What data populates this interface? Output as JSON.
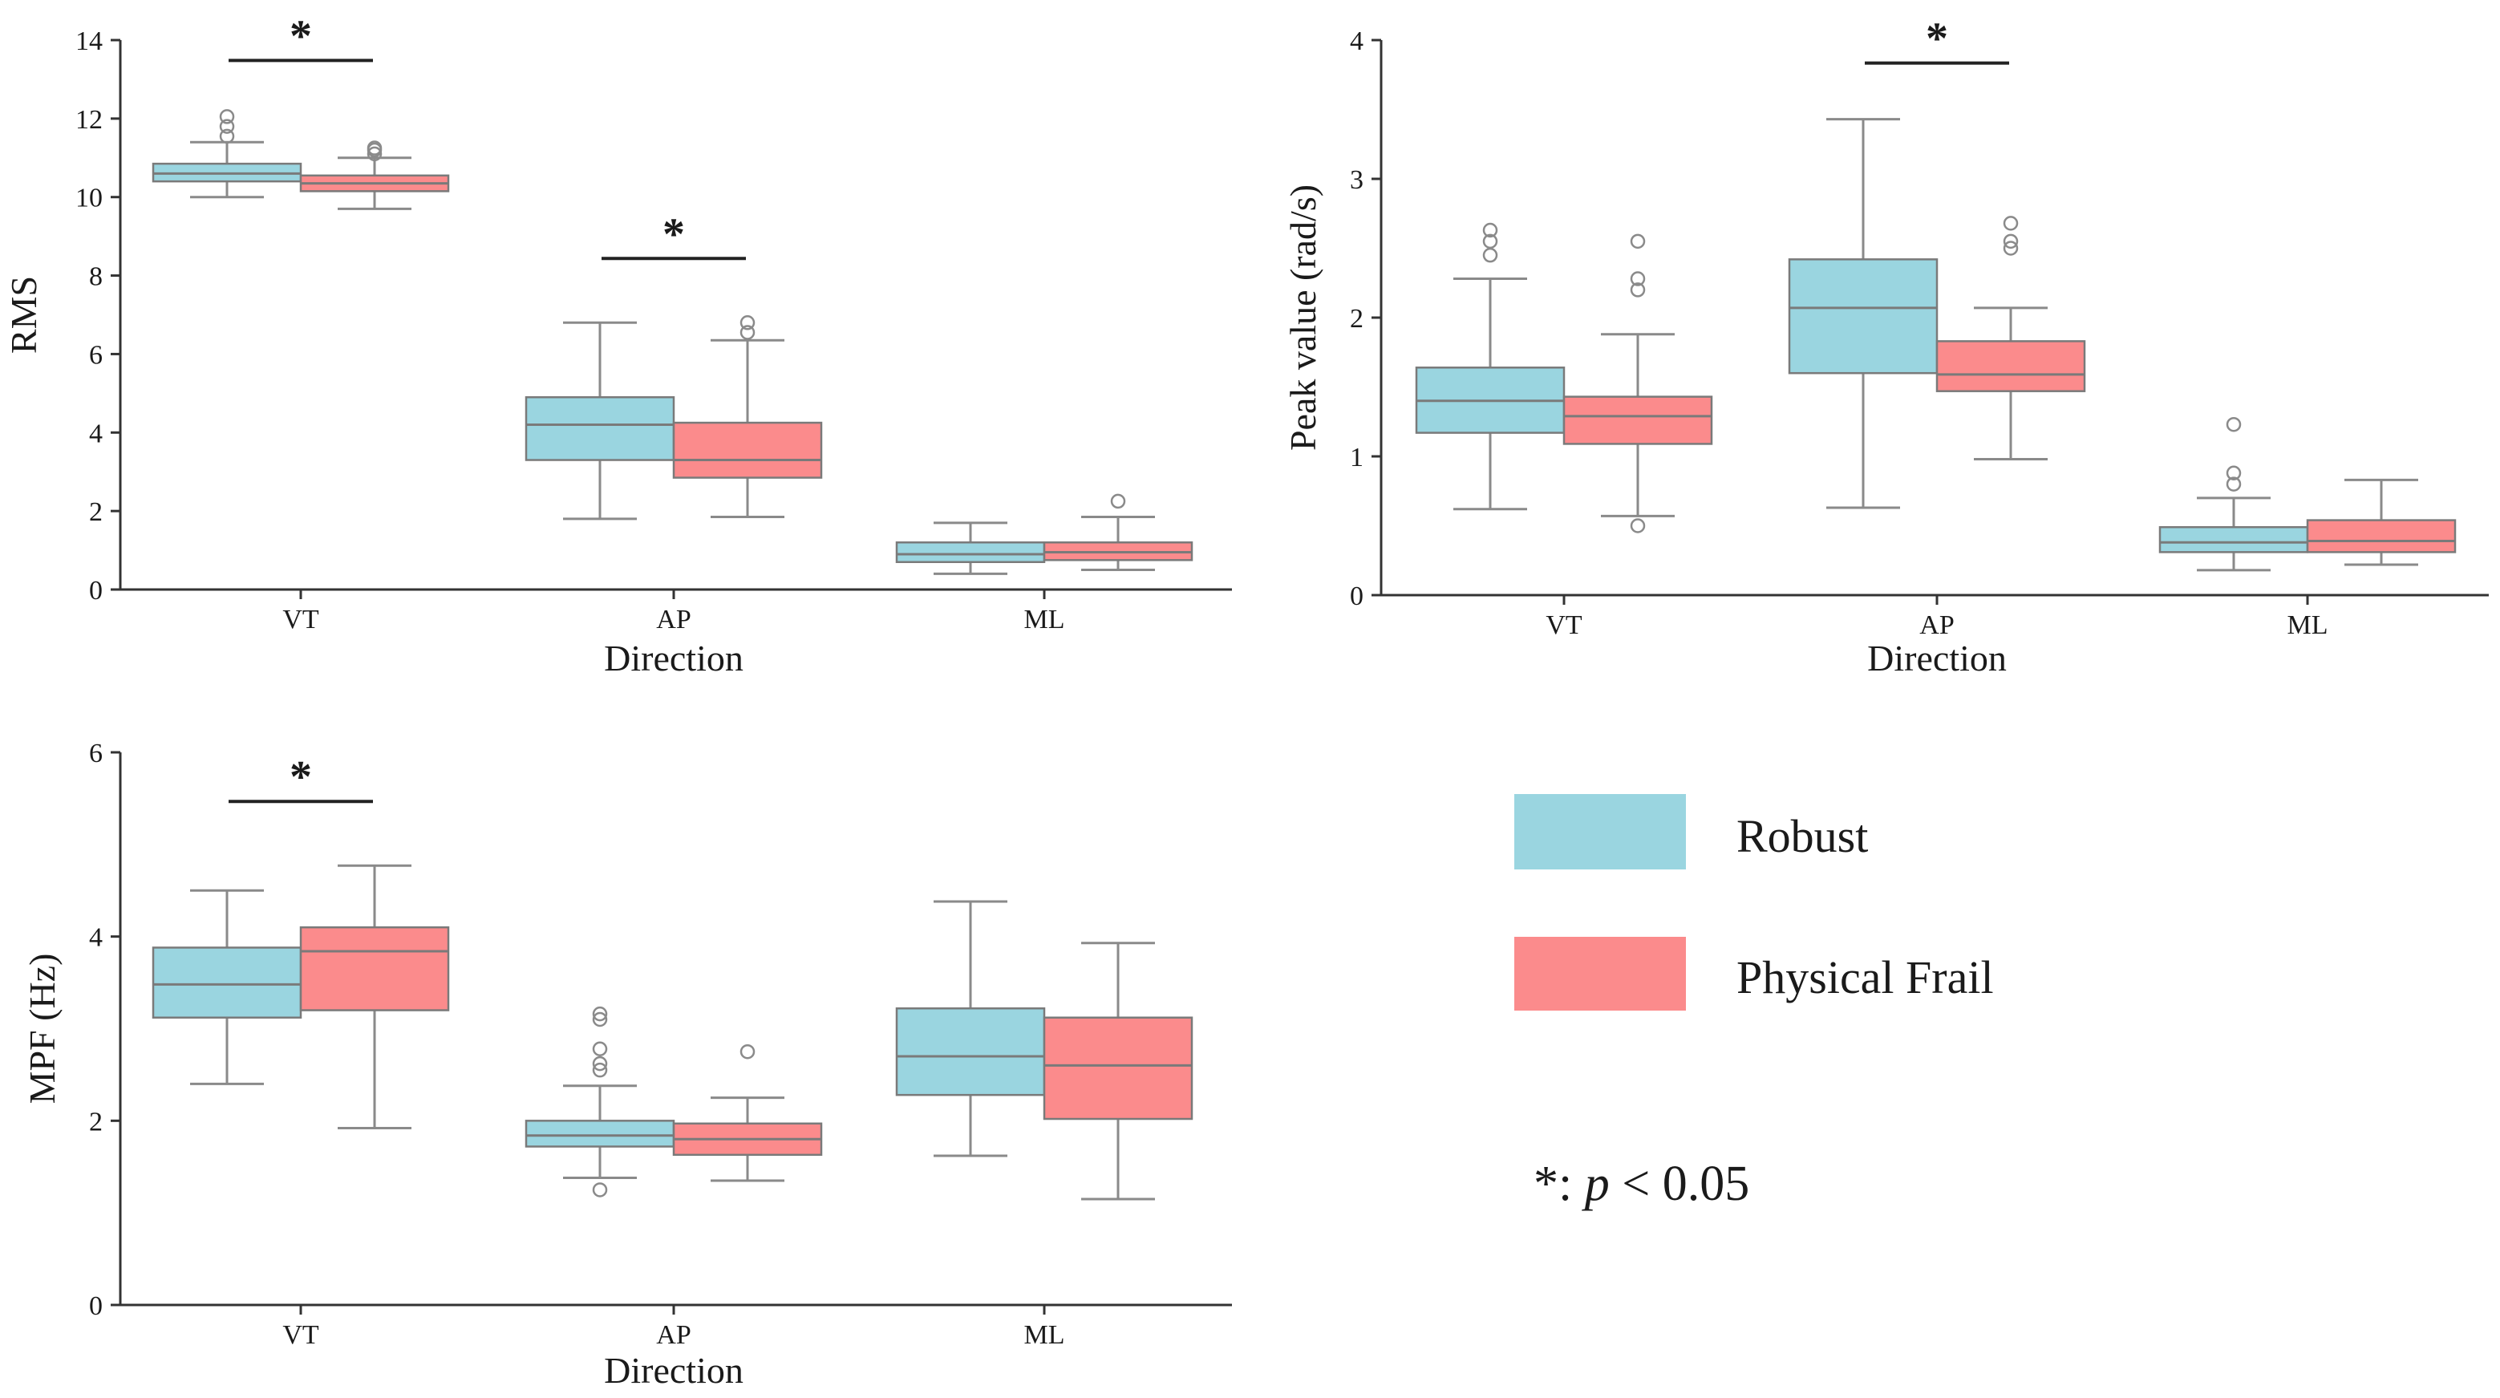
{
  "chart_data": [
    {
      "type": "box",
      "id": "rms",
      "ylabel": "RMS",
      "xlabel": "Direction",
      "ylim": [
        0,
        14
      ],
      "yticks": [
        0,
        2,
        4,
        6,
        8,
        10,
        12,
        14
      ],
      "categories": [
        "VT",
        "AP",
        "ML"
      ],
      "series": [
        {
          "name": "Robust",
          "boxes": [
            {
              "whislo": 10.0,
              "q1": 10.4,
              "med": 10.6,
              "q3": 10.85,
              "whishi": 11.4,
              "fliers": [
                11.55,
                11.8,
                12.05
              ]
            },
            {
              "whislo": 1.8,
              "q1": 3.3,
              "med": 4.2,
              "q3": 4.9,
              "whishi": 6.8,
              "fliers": []
            },
            {
              "whislo": 0.4,
              "q1": 0.7,
              "med": 0.9,
              "q3": 1.2,
              "whishi": 1.7,
              "fliers": []
            }
          ]
        },
        {
          "name": "Physical Frail",
          "boxes": [
            {
              "whislo": 9.7,
              "q1": 10.15,
              "med": 10.35,
              "q3": 10.55,
              "whishi": 11.0,
              "fliers": [
                11.1,
                11.2,
                11.25
              ]
            },
            {
              "whislo": 1.85,
              "q1": 2.85,
              "med": 3.3,
              "q3": 4.25,
              "whishi": 6.35,
              "fliers": [
                6.55,
                6.8
              ]
            },
            {
              "whislo": 0.5,
              "q1": 0.75,
              "med": 0.95,
              "q3": 1.2,
              "whishi": 1.85,
              "fliers": [
                2.25
              ]
            }
          ]
        }
      ],
      "significance": [
        {
          "category": "VT",
          "label": "*"
        },
        {
          "category": "AP",
          "label": "*"
        }
      ]
    },
    {
      "type": "box",
      "id": "peak",
      "ylabel": "Peak value (rad/s)",
      "xlabel": "Direction",
      "ylim": [
        0,
        4
      ],
      "yticks": [
        0,
        1,
        2,
        3,
        4
      ],
      "categories": [
        "VT",
        "AP",
        "ML"
      ],
      "series": [
        {
          "name": "Robust",
          "boxes": [
            {
              "whislo": 0.62,
              "q1": 1.17,
              "med": 1.4,
              "q3": 1.64,
              "whishi": 2.28,
              "fliers": [
                2.45,
                2.55,
                2.63
              ]
            },
            {
              "whislo": 0.63,
              "q1": 1.6,
              "med": 2.07,
              "q3": 2.42,
              "whishi": 3.43,
              "fliers": []
            },
            {
              "whislo": 0.18,
              "q1": 0.31,
              "med": 0.38,
              "q3": 0.49,
              "whishi": 0.7,
              "fliers": [
                0.8,
                0.88,
                1.23
              ]
            }
          ]
        },
        {
          "name": "Physical Frail",
          "boxes": [
            {
              "whislo": 0.57,
              "q1": 1.09,
              "med": 1.29,
              "q3": 1.43,
              "whishi": 1.88,
              "fliers": [
                0.5,
                2.2,
                2.28,
                2.55
              ]
            },
            {
              "whislo": 0.98,
              "q1": 1.47,
              "med": 1.59,
              "q3": 1.83,
              "whishi": 2.07,
              "fliers": [
                2.5,
                2.55,
                2.68
              ]
            },
            {
              "whislo": 0.22,
              "q1": 0.31,
              "med": 0.39,
              "q3": 0.54,
              "whishi": 0.83,
              "fliers": []
            }
          ]
        }
      ],
      "significance": [
        {
          "category": "AP",
          "label": "*"
        }
      ]
    },
    {
      "type": "box",
      "id": "mpf",
      "ylabel": "MPF (Hz)",
      "xlabel": "Direction",
      "ylim": [
        0,
        6
      ],
      "yticks": [
        0,
        2,
        4,
        6
      ],
      "categories": [
        "VT",
        "AP",
        "ML"
      ],
      "series": [
        {
          "name": "Robust",
          "boxes": [
            {
              "whislo": 2.4,
              "q1": 3.12,
              "med": 3.48,
              "q3": 3.88,
              "whishi": 4.5,
              "fliers": []
            },
            {
              "whislo": 1.38,
              "q1": 1.72,
              "med": 1.84,
              "q3": 2.0,
              "whishi": 2.38,
              "fliers": [
                1.25,
                2.55,
                2.62,
                2.78,
                3.1,
                3.16
              ]
            },
            {
              "whislo": 1.62,
              "q1": 2.28,
              "med": 2.7,
              "q3": 3.22,
              "whishi": 4.38,
              "fliers": []
            }
          ]
        },
        {
          "name": "Physical Frail",
          "boxes": [
            {
              "whislo": 1.92,
              "q1": 3.2,
              "med": 3.84,
              "q3": 4.1,
              "whishi": 4.77,
              "fliers": []
            },
            {
              "whislo": 1.35,
              "q1": 1.63,
              "med": 1.8,
              "q3": 1.97,
              "whishi": 2.25,
              "fliers": [
                2.75
              ]
            },
            {
              "whislo": 1.15,
              "q1": 2.02,
              "med": 2.6,
              "q3": 3.12,
              "whishi": 3.93,
              "fliers": []
            }
          ]
        }
      ],
      "significance": [
        {
          "category": "VT",
          "label": "*"
        }
      ]
    }
  ],
  "legend": {
    "items": [
      {
        "name": "Robust",
        "color": "#9ad5e0"
      },
      {
        "name": "Physical Frail",
        "color": "#fb8b8c"
      }
    ]
  },
  "note": {
    "prefix": "*: ",
    "variable": "p",
    "suffix": " < 0.05"
  },
  "colors": {
    "axis": "#333333",
    "box_edge": "#7a7a7a",
    "whisker": "#8a8a8a",
    "sig_bar": "#222222"
  }
}
